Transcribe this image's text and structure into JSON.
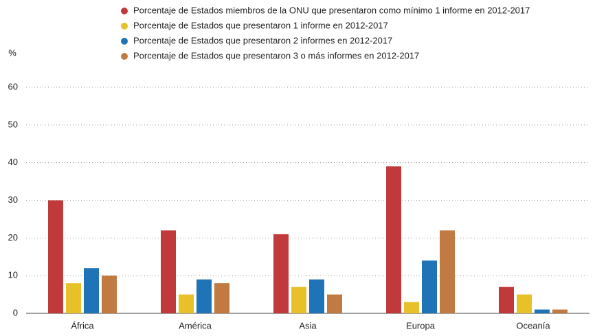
{
  "chart_data": {
    "type": "bar",
    "y_label": "%",
    "categories": [
      "África",
      "América",
      "Asia",
      "Europa",
      "Oceanía"
    ],
    "series": [
      {
        "name": "Porcentaje de Estados miembros de la ONU que presentaron como mínimo 1 informe en 2012-2017",
        "color": "#c0393b",
        "values": [
          30,
          22,
          21,
          39,
          7
        ]
      },
      {
        "name": "Porcentaje de Estados que presentaron 1 informe en 2012-2017",
        "color": "#e8c02a",
        "values": [
          8,
          5,
          7,
          3,
          5
        ]
      },
      {
        "name": "Porcentaje de Estados que presentaron 2 informes en 2012-2017",
        "color": "#1f73b7",
        "values": [
          12,
          9,
          9,
          14,
          1
        ]
      },
      {
        "name": "Porcentaje de Estados que presentaron 3 o más informes en 2012-2017",
        "color": "#c07a42",
        "values": [
          10,
          8,
          5,
          22,
          1
        ]
      }
    ],
    "ylim": [
      0,
      60
    ],
    "yticks": [
      0,
      10,
      20,
      30,
      40,
      50,
      60
    ],
    "grid": true
  }
}
